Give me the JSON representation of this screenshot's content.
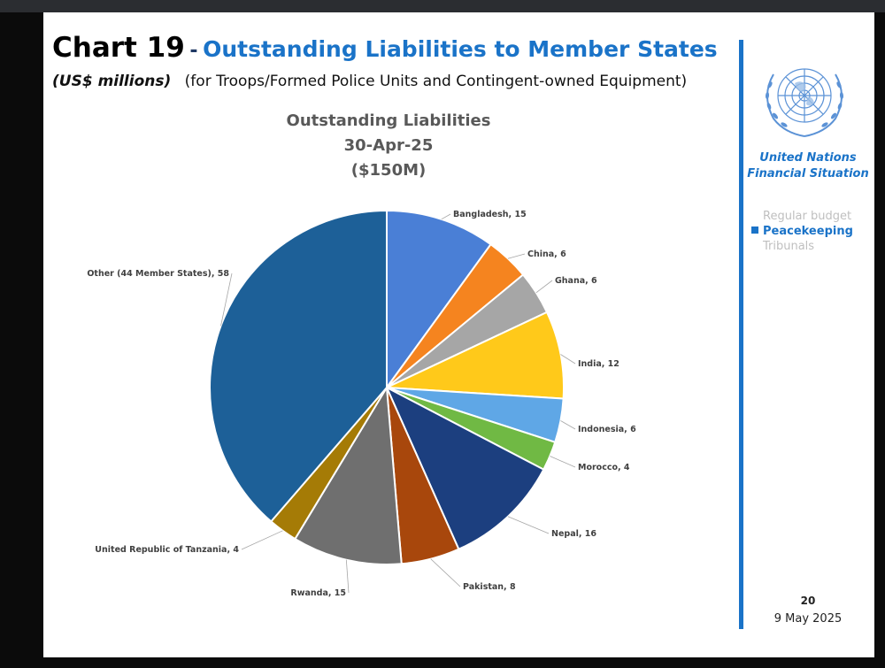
{
  "slide": {
    "chart_number": "Chart 19",
    "separator": "-",
    "title": "Outstanding Liabilities to Member States",
    "unit": "(US$ millions)",
    "subtitle": "(for Troops/Formed Police Units and Contingent-owned Equipment)"
  },
  "sidebar": {
    "org_line1": "United Nations",
    "org_line2": "Financial Situation",
    "menu": [
      {
        "label": "Regular budget",
        "active": false
      },
      {
        "label": "Peacekeeping",
        "active": true
      },
      {
        "label": "Tribunals",
        "active": false
      }
    ],
    "page_number": "20",
    "date": "9 May 2025"
  },
  "colors": {
    "accent": "#1a73c8",
    "title_blue": "#1a73c8",
    "dim_text": "#bfbfbf"
  },
  "chart_data": {
    "type": "pie",
    "title_lines": [
      "Outstanding Liabilities",
      "30-Apr-25",
      "($150M)"
    ],
    "slices": [
      {
        "label": "Bangladesh, 15",
        "name": "Bangladesh",
        "value": 15,
        "color": "#4a7fd6"
      },
      {
        "label": "China, 6",
        "name": "China",
        "value": 6,
        "color": "#f5841f"
      },
      {
        "label": "Ghana, 6",
        "name": "Ghana",
        "value": 6,
        "color": "#a6a6a6"
      },
      {
        "label": "India, 12",
        "name": "India",
        "value": 12,
        "color": "#ffc91a"
      },
      {
        "label": "Indonesia, 6",
        "name": "Indonesia",
        "value": 6,
        "color": "#5fa7e6"
      },
      {
        "label": "Morocco, 4",
        "name": "Morocco",
        "value": 4,
        "color": "#70b944"
      },
      {
        "label": "Nepal, 16",
        "name": "Nepal",
        "value": 16,
        "color": "#1c3f7f"
      },
      {
        "label": "Pakistan, 8",
        "name": "Pakistan",
        "value": 8,
        "color": "#a8470c"
      },
      {
        "label": "Rwanda, 15",
        "name": "Rwanda",
        "value": 15,
        "color": "#6f6f6f"
      },
      {
        "label": "United Republic of Tanzania, 4",
        "name": "United Republic of Tanzania",
        "value": 4,
        "color": "#a57b06"
      },
      {
        "label": "Other (44 Member States), 58",
        "name": "Other (44 Member States)",
        "value": 58,
        "color": "#1d6098"
      }
    ]
  }
}
